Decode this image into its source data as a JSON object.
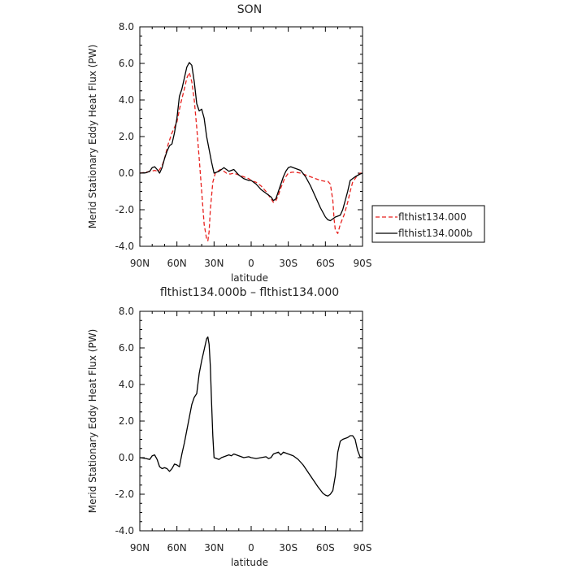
{
  "chart_data": [
    {
      "type": "line",
      "title": "SON",
      "xlabel": "latitude",
      "ylabel": "Merid Stationary Eddy Heat Flux (PW)",
      "xlim": [
        90,
        -90
      ],
      "ylim": [
        -4.0,
        8.0
      ],
      "xticks": [
        90,
        60,
        30,
        0,
        -30,
        -60,
        -90
      ],
      "xtick_labels": [
        "90N",
        "60N",
        "30N",
        "0",
        "30S",
        "60S",
        "90S"
      ],
      "yticks": [
        -4.0,
        -2.0,
        0.0,
        2.0,
        4.0,
        6.0,
        8.0
      ],
      "ytick_labels": [
        "-4.0",
        "-2.0",
        "0.0",
        "2.0",
        "4.0",
        "6.0",
        "8.0"
      ],
      "legend": "right",
      "series": [
        {
          "name": "flthist134.000",
          "color": "#e8211e",
          "dash": "dashed",
          "x": [
            90,
            85,
            81,
            78,
            75,
            72,
            70,
            67,
            64,
            60,
            57,
            54,
            52,
            50,
            48,
            46,
            44,
            42,
            40,
            38,
            36,
            35,
            34,
            33,
            31,
            29,
            27,
            25,
            22,
            20,
            17,
            14,
            10,
            6,
            2,
            0,
            -4,
            -8,
            -12,
            -16,
            -18,
            -20,
            -22,
            -24,
            -27,
            -30,
            -33,
            -36,
            -40,
            -44,
            -48,
            -52,
            -56,
            -60,
            -62,
            -64,
            -66,
            -67,
            -68,
            -70,
            -72,
            -75,
            -78,
            -80,
            -82,
            -85,
            -88,
            -90
          ],
          "y": [
            0.0,
            0.05,
            0.1,
            0.15,
            0.1,
            0.4,
            0.8,
            1.6,
            2.2,
            2.8,
            3.8,
            4.6,
            5.2,
            5.5,
            5.0,
            4.0,
            2.5,
            0.8,
            -1.0,
            -2.8,
            -3.6,
            -3.7,
            -3.2,
            -2.0,
            -0.5,
            0.0,
            0.1,
            0.2,
            0.1,
            0.0,
            -0.05,
            0.0,
            -0.1,
            -0.2,
            -0.3,
            -0.4,
            -0.5,
            -0.7,
            -1.0,
            -1.4,
            -1.6,
            -1.5,
            -1.2,
            -0.8,
            -0.3,
            0.0,
            0.05,
            0.05,
            0.0,
            -0.1,
            -0.2,
            -0.3,
            -0.4,
            -0.45,
            -0.45,
            -0.6,
            -1.5,
            -2.5,
            -3.1,
            -3.3,
            -2.8,
            -2.3,
            -1.6,
            -1.0,
            -0.5,
            -0.2,
            0.0,
            0.0
          ]
        },
        {
          "name": "flthist134.000b",
          "color": "#000000",
          "dash": "solid",
          "x": [
            90,
            85,
            82,
            80,
            78,
            76,
            74,
            72,
            70,
            68,
            66,
            64,
            62,
            60,
            58,
            56,
            54,
            52,
            50,
            48,
            46,
            44,
            42,
            40,
            38,
            36,
            34,
            32,
            30,
            28,
            26,
            24,
            22,
            20,
            18,
            16,
            14,
            12,
            10,
            8,
            6,
            4,
            2,
            0,
            -4,
            -8,
            -12,
            -16,
            -18,
            -20,
            -22,
            -24,
            -26,
            -28,
            -30,
            -32,
            -34,
            -36,
            -40,
            -44,
            -48,
            -52,
            -56,
            -60,
            -62,
            -64,
            -66,
            -68,
            -70,
            -72,
            -74,
            -76,
            -78,
            -80,
            -84,
            -88,
            -90
          ],
          "y": [
            0.0,
            0.02,
            0.1,
            0.3,
            0.35,
            0.2,
            0.0,
            0.3,
            0.8,
            1.2,
            1.5,
            1.6,
            2.2,
            3.0,
            4.2,
            4.6,
            5.2,
            5.8,
            6.05,
            5.9,
            5.0,
            3.8,
            3.4,
            3.5,
            3.0,
            2.0,
            1.3,
            0.6,
            0.0,
            0.05,
            0.1,
            0.2,
            0.3,
            0.2,
            0.1,
            0.15,
            0.2,
            0.05,
            -0.1,
            -0.2,
            -0.3,
            -0.35,
            -0.4,
            -0.4,
            -0.6,
            -0.9,
            -1.1,
            -1.3,
            -1.5,
            -1.4,
            -1.0,
            -0.6,
            -0.2,
            0.1,
            0.3,
            0.35,
            0.3,
            0.25,
            0.15,
            -0.2,
            -0.7,
            -1.3,
            -1.9,
            -2.4,
            -2.55,
            -2.6,
            -2.5,
            -2.4,
            -2.35,
            -2.3,
            -2.0,
            -1.5,
            -1.0,
            -0.4,
            -0.2,
            -0.05,
            0.0
          ]
        }
      ]
    },
    {
      "type": "line",
      "title": "flthist134.000b – flthist134.000",
      "xlabel": "latitude",
      "ylabel": "Merid Stationary Eddy Heat Flux (PW)",
      "xlim": [
        90,
        -90
      ],
      "ylim": [
        -4.0,
        8.0
      ],
      "xticks": [
        90,
        60,
        30,
        0,
        -30,
        -60,
        -90
      ],
      "xtick_labels": [
        "90N",
        "60N",
        "30N",
        "0",
        "30S",
        "60S",
        "90S"
      ],
      "yticks": [
        -4.0,
        -2.0,
        0.0,
        2.0,
        4.0,
        6.0,
        8.0
      ],
      "ytick_labels": [
        "-4.0",
        "-2.0",
        "0.0",
        "2.0",
        "4.0",
        "6.0",
        "8.0"
      ],
      "series": [
        {
          "color": "#000000",
          "dash": "solid",
          "x": [
            90,
            85,
            82,
            80,
            78,
            76,
            74,
            72,
            70,
            68,
            66,
            64,
            62,
            60,
            58,
            56,
            54,
            52,
            50,
            48,
            46,
            44,
            42,
            40,
            38,
            36,
            35,
            34,
            33,
            32,
            31,
            30,
            28,
            26,
            24,
            22,
            20,
            18,
            16,
            14,
            12,
            10,
            6,
            2,
            0,
            -4,
            -8,
            -12,
            -14,
            -16,
            -18,
            -20,
            -22,
            -24,
            -26,
            -28,
            -30,
            -34,
            -38,
            -42,
            -46,
            -50,
            -54,
            -58,
            -60,
            -62,
            -63,
            -64,
            -66,
            -68,
            -70,
            -72,
            -74,
            -76,
            -78,
            -80,
            -82,
            -84,
            -86,
            -88,
            -90
          ],
          "y": [
            0.0,
            -0.05,
            -0.1,
            0.1,
            0.15,
            -0.1,
            -0.5,
            -0.6,
            -0.55,
            -0.6,
            -0.75,
            -0.6,
            -0.35,
            -0.4,
            -0.5,
            0.2,
            0.8,
            1.5,
            2.2,
            2.9,
            3.3,
            3.5,
            4.6,
            5.3,
            5.9,
            6.5,
            6.6,
            6.2,
            5.0,
            3.0,
            1.2,
            0.0,
            -0.05,
            -0.1,
            0.0,
            0.05,
            0.1,
            0.15,
            0.1,
            0.2,
            0.15,
            0.1,
            0.0,
            0.05,
            0.0,
            -0.05,
            0.0,
            0.05,
            -0.05,
            0.0,
            0.2,
            0.25,
            0.3,
            0.15,
            0.3,
            0.25,
            0.2,
            0.1,
            -0.1,
            -0.4,
            -0.8,
            -1.2,
            -1.6,
            -1.95,
            -2.05,
            -2.1,
            -2.05,
            -2.0,
            -1.8,
            -1.0,
            0.3,
            0.9,
            1.0,
            1.05,
            1.1,
            1.2,
            1.2,
            1.0,
            0.4,
            0.05,
            0.0
          ]
        }
      ]
    }
  ]
}
